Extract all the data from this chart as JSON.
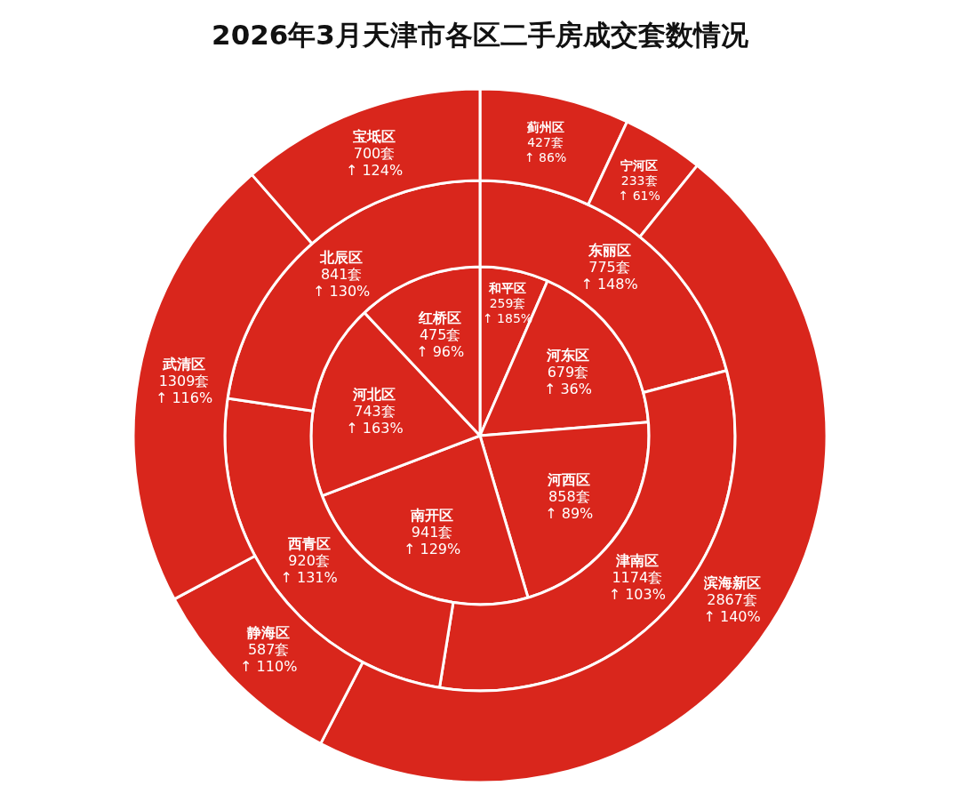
{
  "chart_data": [
    {
      "type": "pie",
      "title": "2026年3月天津市各区二手房成交套数情况",
      "categories": [
        "和平区",
        "河东区",
        "河西区",
        "南开区",
        "河北区",
        "红桥区"
      ],
      "values": [
        259,
        679,
        858,
        941,
        743,
        475
      ],
      "colors": [
        "#d9261c",
        "#d9261c",
        "#d9261c",
        "#d9261c",
        "#d9261c",
        "#d9261c"
      ],
      "value_labels": [
        "259套\n↑ 185%",
        "679套\n↑ 36%",
        "858套\n↑ 89%",
        "941套\n↑ 129%",
        "743套\n↑ 163%",
        "475套\n↑ 96%"
      ]
    },
    {
      "type": "donut",
      "categories": [
        "东丽区",
        "津南区",
        "西青区",
        "北辰区"
      ],
      "values": [
        775,
        1174,
        920,
        841
      ],
      "colors": [
        "#d9261c",
        "#d9261c",
        "#d9261c",
        "#d9261c"
      ],
      "value_labels": [
        "775套\n↑ 148%",
        "1174套\n↑ 103%",
        "920套\n↑ 131%",
        "841套\n↑ 130%"
      ]
    },
    {
      "type": "donut",
      "categories": [
        "蓟州区",
        "宁河区",
        "滨海新区",
        "静海区",
        "武清区",
        "宝坻区"
      ],
      "values": [
        427,
        233,
        2867,
        587,
        1309,
        700
      ],
      "colors": [
        "#d9261c",
        "#d9261c",
        "#d9261c",
        "#d9261c",
        "#d9261c",
        "#d9261c"
      ],
      "value_labels": [
        "427套\n↑ 86%",
        "233套\n↑ 61%",
        "2867套\n↑ 140%",
        "587套\n↑ 110%",
        "1309套\n↑ 116%",
        "700套\n↑ 124%"
      ]
    }
  ]
}
